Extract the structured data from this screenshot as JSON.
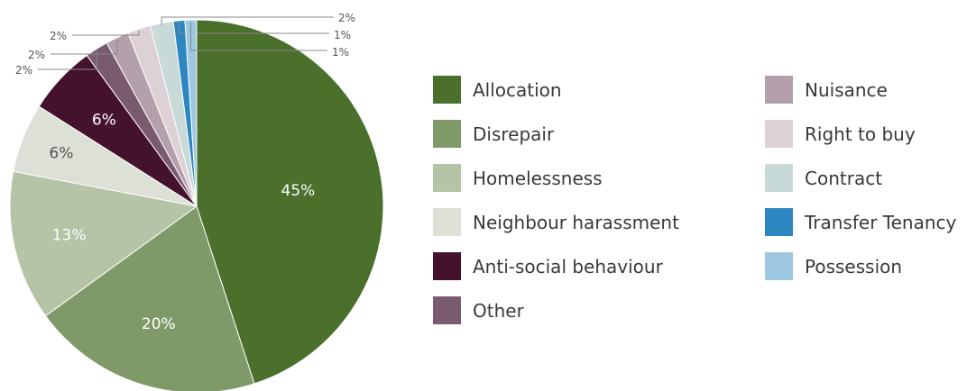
{
  "chart_data": {
    "type": "pie",
    "slices": [
      {
        "label": "Allocation",
        "value": 45,
        "value_label": "45%",
        "color": "#4a702c"
      },
      {
        "label": "Disrepair",
        "value": 20,
        "value_label": "20%",
        "color": "#7f9a68"
      },
      {
        "label": "Homelessness",
        "value": 13,
        "value_label": "13%",
        "color": "#b5c3a6"
      },
      {
        "label": "Neighbour harassment",
        "value": 6,
        "value_label": "6%",
        "color": "#dce0d6"
      },
      {
        "label": "Anti-social behaviour",
        "value": 6,
        "value_label": "6%",
        "color": "#44122d"
      },
      {
        "label": "Other",
        "value": 2,
        "value_label": "2%",
        "color": "#7a5a6e"
      },
      {
        "label": "Nuisance",
        "value": 2,
        "value_label": "2%",
        "color": "#b49fac"
      },
      {
        "label": "Right to buy",
        "value": 2,
        "value_label": "2%",
        "color": "#ddd0d6"
      },
      {
        "label": "Contract",
        "value": 2,
        "value_label": "2%",
        "color": "#c7dad8"
      },
      {
        "label": "Transfer Tenancy",
        "value": 1,
        "value_label": "1%",
        "color": "#2e86c1"
      },
      {
        "label": "Possession",
        "value": 1,
        "value_label": "1%",
        "color": "#9ec8e2"
      }
    ],
    "legend_placement": "right"
  }
}
